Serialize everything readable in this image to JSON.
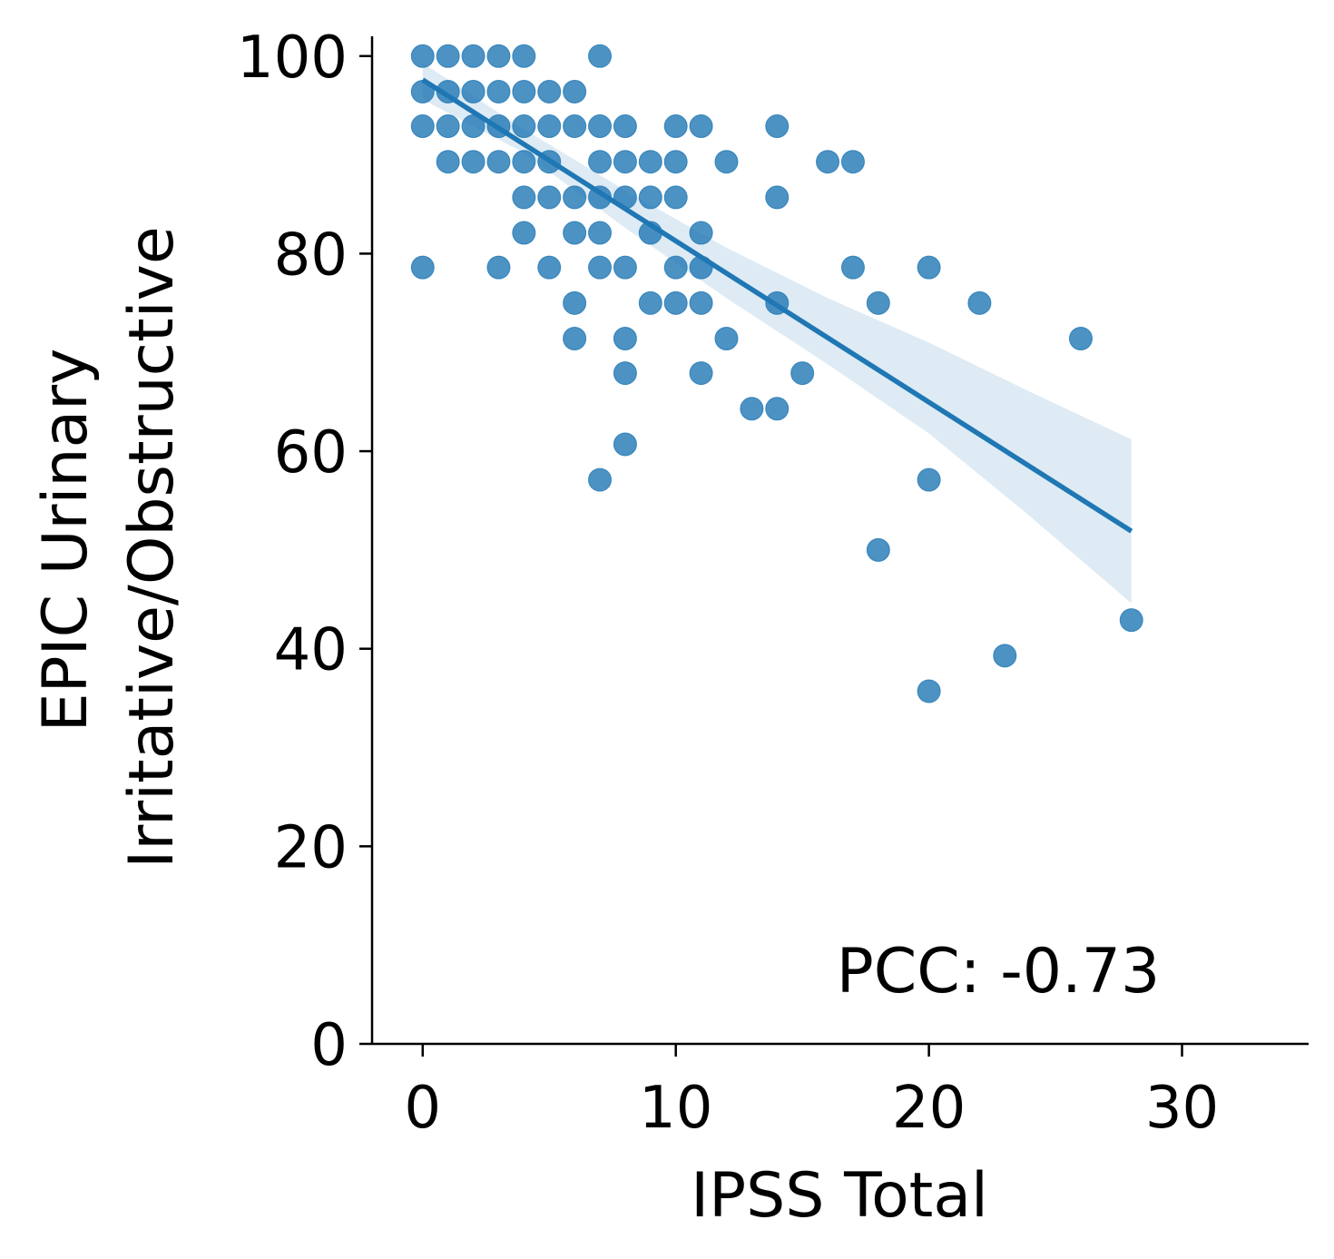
{
  "chart_data": {
    "type": "scatter",
    "xlabel": "IPSS Total",
    "ylabel_lines": [
      "EPIC Urinary",
      "Irritative/Obstructive"
    ],
    "xlim": [
      -2,
      35
    ],
    "ylim": [
      0,
      102
    ],
    "xticks": [
      0,
      10,
      20,
      30
    ],
    "yticks": [
      0,
      20,
      40,
      60,
      80,
      100
    ],
    "annotation": "PCC: -0.73",
    "color": "#1f77b4",
    "points": [
      [
        0,
        100
      ],
      [
        1,
        100
      ],
      [
        2,
        100
      ],
      [
        3,
        100
      ],
      [
        4,
        100
      ],
      [
        7,
        100
      ],
      [
        0,
        96.4
      ],
      [
        1,
        96.4
      ],
      [
        2,
        96.4
      ],
      [
        3,
        96.4
      ],
      [
        4,
        96.4
      ],
      [
        5,
        96.4
      ],
      [
        6,
        96.4
      ],
      [
        0,
        92.9
      ],
      [
        1,
        92.9
      ],
      [
        2,
        92.9
      ],
      [
        3,
        92.9
      ],
      [
        4,
        92.9
      ],
      [
        5,
        92.9
      ],
      [
        6,
        92.9
      ],
      [
        7,
        92.9
      ],
      [
        8,
        92.9
      ],
      [
        10,
        92.9
      ],
      [
        11,
        92.9
      ],
      [
        14,
        92.9
      ],
      [
        1,
        89.3
      ],
      [
        2,
        89.3
      ],
      [
        3,
        89.3
      ],
      [
        4,
        89.3
      ],
      [
        5,
        89.3
      ],
      [
        7,
        89.3
      ],
      [
        8,
        89.3
      ],
      [
        9,
        89.3
      ],
      [
        10,
        89.3
      ],
      [
        12,
        89.3
      ],
      [
        16,
        89.3
      ],
      [
        17,
        89.3
      ],
      [
        4,
        85.7
      ],
      [
        5,
        85.7
      ],
      [
        6,
        85.7
      ],
      [
        7,
        85.7
      ],
      [
        8,
        85.7
      ],
      [
        9,
        85.7
      ],
      [
        10,
        85.7
      ],
      [
        14,
        85.7
      ],
      [
        4,
        82.1
      ],
      [
        6,
        82.1
      ],
      [
        7,
        82.1
      ],
      [
        9,
        82.1
      ],
      [
        11,
        82.1
      ],
      [
        0,
        78.6
      ],
      [
        3,
        78.6
      ],
      [
        5,
        78.6
      ],
      [
        7,
        78.6
      ],
      [
        8,
        78.6
      ],
      [
        10,
        78.6
      ],
      [
        11,
        78.6
      ],
      [
        17,
        78.6
      ],
      [
        20,
        78.6
      ],
      [
        6,
        75
      ],
      [
        9,
        75
      ],
      [
        10,
        75
      ],
      [
        11,
        75
      ],
      [
        14,
        75
      ],
      [
        18,
        75
      ],
      [
        22,
        75
      ],
      [
        6,
        71.4
      ],
      [
        8,
        71.4
      ],
      [
        12,
        71.4
      ],
      [
        26,
        71.4
      ],
      [
        8,
        67.9
      ],
      [
        11,
        67.9
      ],
      [
        15,
        67.9
      ],
      [
        13,
        64.3
      ],
      [
        14,
        64.3
      ],
      [
        8,
        60.7
      ],
      [
        7,
        57.1
      ],
      [
        20,
        57.1
      ],
      [
        18,
        50
      ],
      [
        28,
        42.9
      ],
      [
        23,
        39.3
      ],
      [
        20,
        35.7
      ]
    ],
    "regression": {
      "x": [
        0,
        28
      ],
      "y": [
        97.6,
        51.9
      ]
    },
    "ci_band": {
      "x": [
        0,
        4,
        8,
        12,
        16,
        20,
        24,
        28
      ],
      "upper": [
        99.3,
        92.6,
        86.4,
        80.6,
        75.5,
        71.0,
        66.0,
        61.2
      ],
      "lower": [
        95.6,
        90.2,
        82.6,
        75.5,
        68.8,
        61.8,
        53.4,
        44.6
      ]
    }
  }
}
